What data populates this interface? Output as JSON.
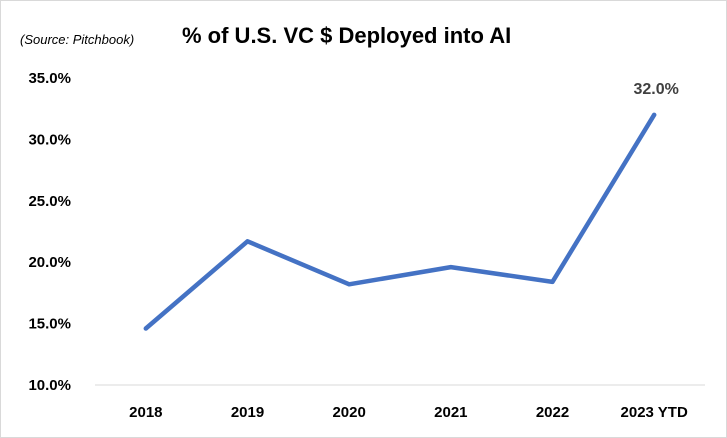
{
  "source_note": "(Source: Pitchbook)",
  "chart_data": {
    "type": "line",
    "title": "% of U.S. VC $ Deployed into AI",
    "xlabel": "",
    "ylabel": "",
    "categories": [
      "2018",
      "2019",
      "2020",
      "2021",
      "2022",
      "2023 YTD"
    ],
    "series": [
      {
        "values": [
          14.6,
          21.7,
          18.2,
          19.6,
          18.4,
          32.0
        ],
        "color": "#4472c4"
      }
    ],
    "ylim": [
      10,
      35
    ],
    "yticks": [
      "10.0%",
      "15.0%",
      "20.0%",
      "25.0%",
      "30.0%",
      "35.0%"
    ],
    "data_labels": [
      {
        "index": 5,
        "text": "32.0%"
      }
    ],
    "grid": false,
    "legend": "none"
  }
}
